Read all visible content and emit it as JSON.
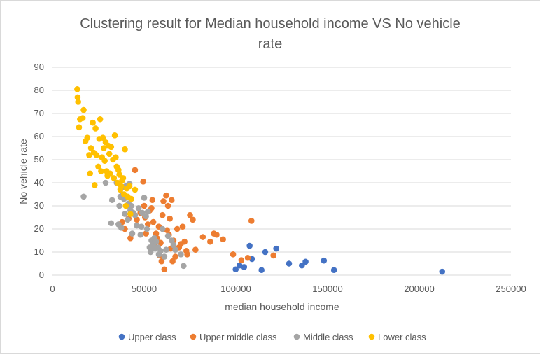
{
  "chart_data": {
    "type": "scatter",
    "title": "Clustering result for Median household income VS No vehicle rate",
    "title_lines": [
      "Clustering result for Median household income VS No vehicle",
      "rate"
    ],
    "xlabel": "median household income",
    "ylabel": "No vehicle rate",
    "xlim": [
      0,
      250000
    ],
    "ylim": [
      0,
      90
    ],
    "xticks": [
      0,
      50000,
      100000,
      150000,
      200000,
      250000
    ],
    "yticks": [
      0,
      10,
      20,
      30,
      40,
      50,
      60,
      70,
      80,
      90
    ],
    "grid": "horizontal",
    "legend_position": "bottom",
    "series": [
      {
        "name": "Upper class",
        "color": "#4472c4",
        "points": [
          [
            99900,
            2.5
          ],
          [
            102000,
            4.2
          ],
          [
            104500,
            3.5
          ],
          [
            107500,
            12.7
          ],
          [
            108800,
            7
          ],
          [
            114000,
            2.2
          ],
          [
            116000,
            10
          ],
          [
            122000,
            11.5
          ],
          [
            129000,
            5
          ],
          [
            136000,
            4.2
          ],
          [
            138000,
            5.8
          ],
          [
            148000,
            6.3
          ],
          [
            153500,
            2.2
          ],
          [
            212500,
            1.5
          ]
        ]
      },
      {
        "name": "Upper middle class",
        "color": "#ed7d31",
        "points": [
          [
            38000,
            23
          ],
          [
            39500,
            20
          ],
          [
            41500,
            24.5
          ],
          [
            42500,
            16
          ],
          [
            45000,
            45.5
          ],
          [
            46000,
            24
          ],
          [
            48000,
            27
          ],
          [
            49500,
            40.5
          ],
          [
            50000,
            30
          ],
          [
            50500,
            25
          ],
          [
            51000,
            18
          ],
          [
            52000,
            22
          ],
          [
            53000,
            28
          ],
          [
            54000,
            29
          ],
          [
            54500,
            32.5
          ],
          [
            55000,
            23
          ],
          [
            55500,
            13.5
          ],
          [
            56500,
            18
          ],
          [
            57000,
            16
          ],
          [
            58000,
            21
          ],
          [
            58500,
            8.5
          ],
          [
            59000,
            14
          ],
          [
            59500,
            6
          ],
          [
            60000,
            26
          ],
          [
            60500,
            32
          ],
          [
            61000,
            2.5
          ],
          [
            62000,
            34.5
          ],
          [
            62500,
            19.5
          ],
          [
            63000,
            30
          ],
          [
            63500,
            17.5
          ],
          [
            64000,
            24.5
          ],
          [
            64500,
            11.5
          ],
          [
            65000,
            32.5
          ],
          [
            65500,
            6
          ],
          [
            66000,
            15
          ],
          [
            67000,
            8
          ],
          [
            68000,
            20
          ],
          [
            69000,
            12
          ],
          [
            70000,
            13.5
          ],
          [
            71000,
            21
          ],
          [
            72000,
            14.5
          ],
          [
            73000,
            10.5
          ],
          [
            73500,
            9
          ],
          [
            75000,
            26
          ],
          [
            76500,
            24
          ],
          [
            78000,
            11
          ],
          [
            82000,
            16.5
          ],
          [
            86000,
            14.5
          ],
          [
            88000,
            18
          ],
          [
            89500,
            17.5
          ],
          [
            93000,
            15.5
          ],
          [
            98500,
            9
          ],
          [
            103000,
            6.5
          ],
          [
            106500,
            7.5
          ],
          [
            108500,
            23.5
          ],
          [
            120500,
            8.5
          ]
        ]
      },
      {
        "name": "Middle class",
        "color": "#a5a5a5",
        "points": [
          [
            17000,
            34
          ],
          [
            29000,
            40
          ],
          [
            32000,
            22.5
          ],
          [
            32500,
            32.5
          ],
          [
            35000,
            40
          ],
          [
            36000,
            22
          ],
          [
            36500,
            30
          ],
          [
            37000,
            34
          ],
          [
            37500,
            20.5
          ],
          [
            38000,
            38
          ],
          [
            38500,
            35
          ],
          [
            39000,
            33
          ],
          [
            39500,
            26.5
          ],
          [
            40000,
            38.5
          ],
          [
            40500,
            30
          ],
          [
            41000,
            24
          ],
          [
            41500,
            31
          ],
          [
            42000,
            39.5
          ],
          [
            42500,
            28
          ],
          [
            43000,
            30
          ],
          [
            43500,
            18
          ],
          [
            44000,
            27
          ],
          [
            45000,
            26
          ],
          [
            46000,
            21.5
          ],
          [
            47000,
            29
          ],
          [
            48000,
            17.5
          ],
          [
            48500,
            21
          ],
          [
            49000,
            27
          ],
          [
            50000,
            33.5
          ],
          [
            51000,
            25.5
          ],
          [
            51500,
            20
          ],
          [
            52000,
            27.5
          ],
          [
            53000,
            12
          ],
          [
            53500,
            10
          ],
          [
            54000,
            15
          ],
          [
            54500,
            12
          ],
          [
            55000,
            13.5
          ],
          [
            55500,
            16
          ],
          [
            56000,
            11.5
          ],
          [
            56500,
            14.5
          ],
          [
            57500,
            12
          ],
          [
            58000,
            9
          ],
          [
            59000,
            10.5
          ],
          [
            60000,
            20
          ],
          [
            61000,
            8
          ],
          [
            62000,
            11
          ],
          [
            63000,
            17
          ],
          [
            65000,
            15
          ],
          [
            66000,
            13
          ],
          [
            67000,
            11
          ],
          [
            70000,
            9
          ],
          [
            71500,
            4
          ]
        ]
      },
      {
        "name": "Lower class",
        "color": "#ffc000",
        "points": [
          [
            13500,
            80.5
          ],
          [
            13700,
            77
          ],
          [
            14000,
            75
          ],
          [
            14500,
            64
          ],
          [
            15000,
            67.5
          ],
          [
            16500,
            68
          ],
          [
            17000,
            71.5
          ],
          [
            18000,
            58
          ],
          [
            19000,
            59.5
          ],
          [
            20000,
            52
          ],
          [
            20500,
            44
          ],
          [
            21000,
            55
          ],
          [
            22000,
            66
          ],
          [
            22500,
            53
          ],
          [
            23000,
            39
          ],
          [
            23500,
            63.5
          ],
          [
            24000,
            52
          ],
          [
            25000,
            47
          ],
          [
            25500,
            59
          ],
          [
            26000,
            67.5
          ],
          [
            26500,
            45
          ],
          [
            27000,
            51
          ],
          [
            27500,
            59.5
          ],
          [
            28000,
            55
          ],
          [
            28500,
            49.5
          ],
          [
            29000,
            57.5
          ],
          [
            29500,
            45
          ],
          [
            30000,
            43
          ],
          [
            30500,
            56
          ],
          [
            31000,
            52.5
          ],
          [
            31500,
            44
          ],
          [
            32000,
            55.5
          ],
          [
            33000,
            50
          ],
          [
            33500,
            42
          ],
          [
            34000,
            60.5
          ],
          [
            34500,
            51
          ],
          [
            35000,
            47
          ],
          [
            35500,
            40
          ],
          [
            36000,
            45.5
          ],
          [
            36500,
            43.5
          ],
          [
            37000,
            37
          ],
          [
            37500,
            38.5
          ],
          [
            38000,
            41
          ],
          [
            38500,
            42
          ],
          [
            39000,
            35
          ],
          [
            39500,
            54.5
          ],
          [
            40000,
            30
          ],
          [
            40500,
            37.5
          ],
          [
            41000,
            34
          ],
          [
            42000,
            38.5
          ],
          [
            42500,
            26.5
          ],
          [
            43000,
            33
          ],
          [
            45000,
            37
          ]
        ]
      }
    ]
  }
}
